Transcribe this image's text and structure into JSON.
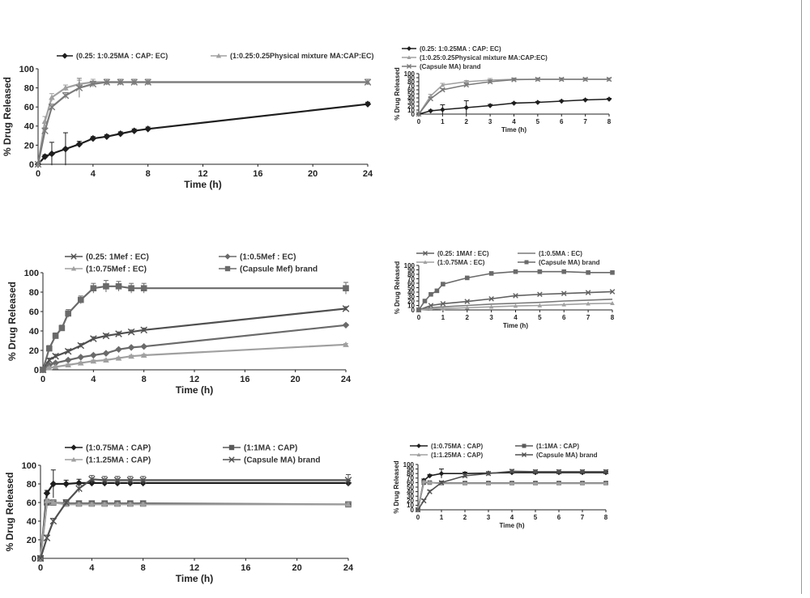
{
  "colors": {
    "black": "#1e1e1e",
    "dark": "#505050",
    "mid": "#7a7a7a",
    "light": "#a0a0a0",
    "frame": "#9a9a9a"
  },
  "chart_data": [
    {
      "type": "line",
      "xlabel": "Time (h)",
      "ylabel": "% Drug Released",
      "xlim": [
        0,
        24
      ],
      "ylim": [
        0,
        100
      ],
      "xticks": [
        0,
        4,
        8,
        12,
        16,
        20,
        24
      ],
      "yticks": [
        0,
        20,
        40,
        60,
        80,
        100
      ],
      "legend": "top",
      "series": [
        {
          "name": "(0.25: 1:0.25MA : CAP: EC)",
          "color": "#1e1e1e",
          "marker": "diamond",
          "x": [
            0,
            0.5,
            1,
            2,
            3,
            4,
            5,
            6,
            7,
            8,
            24
          ],
          "y": [
            0,
            8,
            11,
            16,
            21,
            27,
            29,
            32,
            35,
            37,
            63
          ],
          "err": [
            0,
            2,
            12,
            17,
            3,
            2,
            2,
            2,
            2,
            2,
            2
          ]
        },
        {
          "name": "(1:0.25:0.25Physical mixture MA:CAP:EC)",
          "color": "#a0a0a0",
          "marker": "triangle",
          "x": [
            0,
            0.5,
            1,
            2,
            3,
            4,
            5,
            6,
            7,
            8,
            24
          ],
          "y": [
            0,
            45,
            70,
            80,
            84,
            86,
            86,
            86,
            86,
            86,
            86
          ],
          "err": [
            0,
            5,
            4,
            3,
            4,
            3,
            3,
            3,
            3,
            3,
            3
          ]
        },
        {
          "name": "",
          "color": "#7a7a7a",
          "marker": "x",
          "x": [
            0,
            0.5,
            1,
            2,
            3,
            4,
            5,
            6,
            7,
            8,
            24
          ],
          "y": [
            0,
            35,
            60,
            72,
            80,
            84,
            86,
            86,
            86,
            86,
            86
          ],
          "err": [
            0,
            3,
            3,
            3,
            10,
            3,
            3,
            3,
            3,
            3,
            3
          ]
        }
      ]
    },
    {
      "type": "line",
      "xlabel": "Time (h)",
      "ylabel": "% Drug Released",
      "xlim": [
        0,
        8
      ],
      "ylim": [
        0,
        100
      ],
      "xticks": [
        0,
        1,
        2,
        3,
        4,
        5,
        6,
        7,
        8
      ],
      "yticks": [
        0,
        10,
        20,
        30,
        40,
        50,
        60,
        70,
        80,
        90,
        100
      ],
      "legend": "top",
      "series": [
        {
          "name": "(0.25: 1:0.25MA : CAP: EC)",
          "color": "#1e1e1e",
          "marker": "diamond",
          "x": [
            0,
            0.5,
            1,
            2,
            3,
            4,
            5,
            6,
            7,
            8
          ],
          "y": [
            0,
            8,
            11,
            16,
            21,
            27,
            29,
            32,
            35,
            37
          ],
          "err": [
            0,
            2,
            12,
            17,
            3,
            2,
            2,
            2,
            2,
            2
          ]
        },
        {
          "name": "(1:0.25:0.25Physical mixture MA:CAP:EC)",
          "color": "#a0a0a0",
          "marker": "triangle",
          "x": [
            0,
            0.5,
            1,
            2,
            3,
            4,
            5,
            6,
            7,
            8
          ],
          "y": [
            0,
            45,
            72,
            80,
            84,
            86,
            86,
            86,
            86,
            86
          ],
          "err": [
            0,
            4,
            4,
            3,
            4,
            3,
            3,
            3,
            3,
            3
          ]
        },
        {
          "name": "(Capsule MA) brand",
          "color": "#7a7a7a",
          "marker": "x",
          "x": [
            0,
            0.5,
            1,
            2,
            3,
            4,
            5,
            6,
            7,
            8
          ],
          "y": [
            0,
            38,
            60,
            72,
            80,
            85,
            86,
            86,
            86,
            86
          ],
          "err": [
            0,
            3,
            3,
            3,
            4,
            3,
            3,
            3,
            3,
            3
          ]
        }
      ]
    },
    {
      "type": "line",
      "xlabel": "Time (h)",
      "ylabel": "% Drug Released",
      "xlim": [
        0,
        24
      ],
      "ylim": [
        0,
        100
      ],
      "xticks": [
        0,
        4,
        8,
        12,
        16,
        20,
        24
      ],
      "yticks": [
        0,
        20,
        40,
        60,
        80,
        100
      ],
      "legend": "top",
      "series": [
        {
          "name": "(0.25: 1Mef : EC)",
          "color": "#505050",
          "marker": "x",
          "x": [
            0,
            0.5,
            1,
            2,
            3,
            4,
            5,
            6,
            7,
            8,
            24
          ],
          "y": [
            0,
            10,
            14,
            19,
            25,
            32,
            35,
            37,
            39,
            41,
            63
          ],
          "err": [
            0,
            2,
            2,
            2,
            2,
            2,
            2,
            2,
            2,
            2,
            2
          ]
        },
        {
          "name": "(1:0.5Mef : EC)",
          "color": "#6a6a6a",
          "marker": "diamond",
          "x": [
            0,
            0.5,
            1,
            2,
            3,
            4,
            5,
            6,
            7,
            8,
            24
          ],
          "y": [
            0,
            5,
            7,
            10,
            13,
            15,
            17,
            21,
            23,
            24,
            46
          ],
          "err": [
            0,
            1,
            1,
            1,
            1,
            1,
            1,
            1,
            1,
            1,
            1
          ]
        },
        {
          "name": "(1:0.75Mef : EC)",
          "color": "#a0a0a0",
          "marker": "triangle",
          "x": [
            0,
            0.5,
            1,
            2,
            3,
            4,
            5,
            6,
            7,
            8,
            24
          ],
          "y": [
            0,
            2,
            3,
            5,
            7,
            9,
            10,
            12,
            14,
            15,
            26
          ],
          "err": [
            0,
            1,
            1,
            1,
            1,
            1,
            1,
            1,
            1,
            1,
            1
          ]
        },
        {
          "name": "(Capsule Mef) brand",
          "color": "#6a6a6a",
          "marker": "square",
          "x": [
            0,
            0.5,
            1,
            1.5,
            2,
            3,
            4,
            5,
            6,
            7,
            8,
            24
          ],
          "y": [
            0,
            22,
            35,
            43,
            58,
            72,
            84,
            86,
            86,
            84,
            84,
            84
          ],
          "err": [
            0,
            3,
            3,
            3,
            4,
            4,
            5,
            6,
            5,
            5,
            5,
            6
          ]
        }
      ]
    },
    {
      "type": "line",
      "xlabel": "Time (h)",
      "ylabel": "% Drug Released",
      "xlim": [
        0,
        8
      ],
      "ylim": [
        0,
        100
      ],
      "xticks": [
        0,
        1,
        2,
        3,
        4,
        5,
        6,
        7,
        8
      ],
      "yticks": [
        0,
        10,
        20,
        30,
        40,
        50,
        60,
        70,
        80,
        90,
        100
      ],
      "legend": "top",
      "series": [
        {
          "name": "(0.25: 1MAf : EC)",
          "color": "#606060",
          "marker": "x",
          "x": [
            0,
            0.5,
            1,
            2,
            3,
            4,
            5,
            6,
            7,
            8
          ],
          "y": [
            0,
            10,
            14,
            19,
            25,
            32,
            35,
            37,
            39,
            41
          ],
          "err": [
            0,
            0,
            0,
            0,
            0,
            0,
            0,
            0,
            0,
            0
          ]
        },
        {
          "name": "(1:0.5MA : EC)",
          "color": "#7a7a7a",
          "marker": "none",
          "x": [
            0,
            0.5,
            1,
            2,
            3,
            4,
            5,
            6,
            7,
            8
          ],
          "y": [
            0,
            5,
            7,
            10,
            13,
            15,
            17,
            20,
            22,
            24
          ],
          "err": [
            0,
            0,
            0,
            0,
            0,
            0,
            0,
            0,
            0,
            0
          ]
        },
        {
          "name": "(1:0.75MA : EC)",
          "color": "#a0a0a0",
          "marker": "triangle",
          "x": [
            0,
            0.5,
            1,
            2,
            3,
            4,
            5,
            6,
            7,
            8
          ],
          "y": [
            0,
            2,
            3,
            5,
            7,
            9,
            10,
            12,
            14,
            15
          ],
          "err": [
            0,
            0,
            0,
            0,
            0,
            0,
            0,
            0,
            0,
            0
          ]
        },
        {
          "name": "(Capsule MA) brand",
          "color": "#6a6a6a",
          "marker": "square",
          "x": [
            0,
            0.25,
            0.5,
            0.75,
            1,
            2,
            3,
            4,
            5,
            6,
            7,
            8
          ],
          "y": [
            0,
            20,
            35,
            43,
            58,
            72,
            82,
            86,
            86,
            86,
            84,
            84
          ],
          "err": [
            0,
            0,
            0,
            0,
            0,
            0,
            0,
            0,
            0,
            0,
            0,
            0
          ]
        }
      ]
    },
    {
      "type": "line",
      "xlabel": "Time (h)",
      "ylabel": "% Drug Released",
      "xlim": [
        0,
        24
      ],
      "ylim": [
        0,
        100
      ],
      "xticks": [
        0,
        4,
        8,
        12,
        16,
        20,
        24
      ],
      "yticks": [
        0,
        20,
        40,
        60,
        80,
        100
      ],
      "legend": "top",
      "series": [
        {
          "name": "(1:0.75MA : CAP)",
          "color": "#1e1e1e",
          "marker": "diamond",
          "x": [
            0,
            0.5,
            1,
            2,
            3,
            4,
            5,
            6,
            7,
            8,
            24
          ],
          "y": [
            0,
            70,
            80,
            80,
            81,
            81,
            81,
            81,
            81,
            81,
            81
          ],
          "err": [
            0,
            3,
            15,
            4,
            4,
            3,
            3,
            3,
            3,
            3,
            3
          ]
        },
        {
          "name": "(1:1MA : CAP)",
          "color": "#5a5a5a",
          "marker": "square",
          "x": [
            0,
            0.5,
            1,
            2,
            3,
            4,
            5,
            6,
            7,
            8,
            24
          ],
          "y": [
            0,
            60,
            60,
            59,
            59,
            59,
            59,
            59,
            59,
            59,
            58
          ],
          "err": [
            0,
            2,
            2,
            2,
            2,
            2,
            2,
            2,
            2,
            2,
            2
          ]
        },
        {
          "name": "(1:1.25MA : CAP)",
          "color": "#a0a0a0",
          "marker": "triangle",
          "x": [
            0,
            0.5,
            1,
            2,
            3,
            4,
            5,
            6,
            7,
            8,
            24
          ],
          "y": [
            0,
            62,
            60,
            58,
            58,
            58,
            58,
            58,
            58,
            58,
            58
          ],
          "err": [
            0,
            2,
            2,
            2,
            2,
            2,
            2,
            2,
            2,
            2,
            2
          ]
        },
        {
          "name": "(Capsule MA) brand",
          "color": "#505050",
          "marker": "x",
          "x": [
            0,
            0.5,
            1,
            2,
            3,
            4,
            5,
            6,
            7,
            8,
            24
          ],
          "y": [
            0,
            22,
            40,
            60,
            75,
            85,
            84,
            84,
            84,
            84,
            84
          ],
          "err": [
            0,
            3,
            3,
            3,
            4,
            4,
            4,
            4,
            4,
            4,
            6
          ]
        }
      ]
    },
    {
      "type": "line",
      "xlabel": "Time (h)",
      "ylabel": "% Drug Released",
      "xlim": [
        0,
        8
      ],
      "ylim": [
        0,
        100
      ],
      "xticks": [
        0,
        1,
        2,
        3,
        4,
        5,
        6,
        7,
        8
      ],
      "yticks": [
        0,
        10,
        20,
        30,
        40,
        50,
        60,
        70,
        80,
        90,
        100
      ],
      "legend": "top",
      "series": [
        {
          "name": "(1:0.75MA : CAP)",
          "color": "#1e1e1e",
          "marker": "diamond",
          "x": [
            0,
            0.25,
            0.5,
            1,
            2,
            3,
            4,
            5,
            6,
            7,
            8
          ],
          "y": [
            0,
            65,
            75,
            80,
            80,
            81,
            82,
            82,
            82,
            82,
            82
          ],
          "err": [
            0,
            3,
            3,
            10,
            3,
            3,
            3,
            3,
            3,
            3,
            3
          ]
        },
        {
          "name": "(1:1MA : CAP)",
          "color": "#5a5a5a",
          "marker": "square",
          "x": [
            0,
            0.25,
            0.5,
            1,
            2,
            3,
            4,
            5,
            6,
            7,
            8
          ],
          "y": [
            0,
            60,
            60,
            59,
            59,
            59,
            59,
            59,
            59,
            59,
            59
          ],
          "err": [
            0,
            2,
            2,
            2,
            2,
            2,
            2,
            2,
            2,
            2,
            2
          ]
        },
        {
          "name": "(1:1.25MA : CAP)",
          "color": "#a0a0a0",
          "marker": "triangle",
          "x": [
            0,
            0.25,
            0.5,
            1,
            2,
            3,
            4,
            5,
            6,
            7,
            8
          ],
          "y": [
            0,
            62,
            60,
            58,
            58,
            58,
            58,
            58,
            58,
            58,
            58
          ],
          "err": [
            0,
            2,
            2,
            2,
            2,
            2,
            2,
            2,
            2,
            2,
            2
          ]
        },
        {
          "name": "(Capsule MA) brand",
          "color": "#505050",
          "marker": "x",
          "x": [
            0,
            0.25,
            0.5,
            1,
            2,
            3,
            4,
            5,
            6,
            7,
            8
          ],
          "y": [
            0,
            20,
            40,
            60,
            75,
            80,
            85,
            84,
            84,
            84,
            84
          ],
          "err": [
            0,
            3,
            3,
            3,
            4,
            4,
            4,
            4,
            4,
            4,
            4
          ]
        }
      ]
    }
  ]
}
